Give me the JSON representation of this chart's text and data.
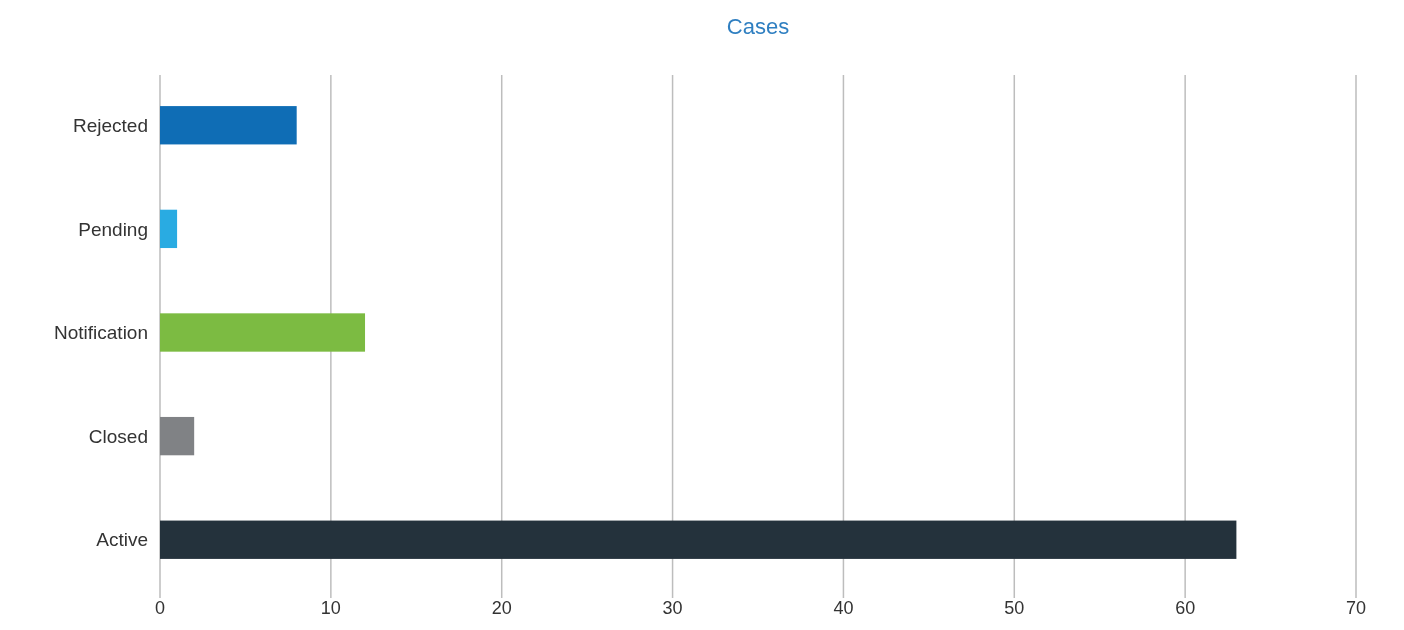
{
  "chart_data": {
    "type": "bar",
    "orientation": "horizontal",
    "title": "Cases",
    "categories": [
      "Rejected",
      "Pending",
      "Notification",
      "Closed",
      "Active"
    ],
    "values": [
      8,
      1,
      12,
      2,
      63
    ],
    "colors": [
      "#0f6db5",
      "#29abe2",
      "#7cbb42",
      "#808285",
      "#24323c"
    ],
    "xlim": [
      0,
      70
    ],
    "xticks": [
      0,
      10,
      20,
      30,
      40,
      50,
      60,
      70
    ],
    "grid": "x"
  }
}
